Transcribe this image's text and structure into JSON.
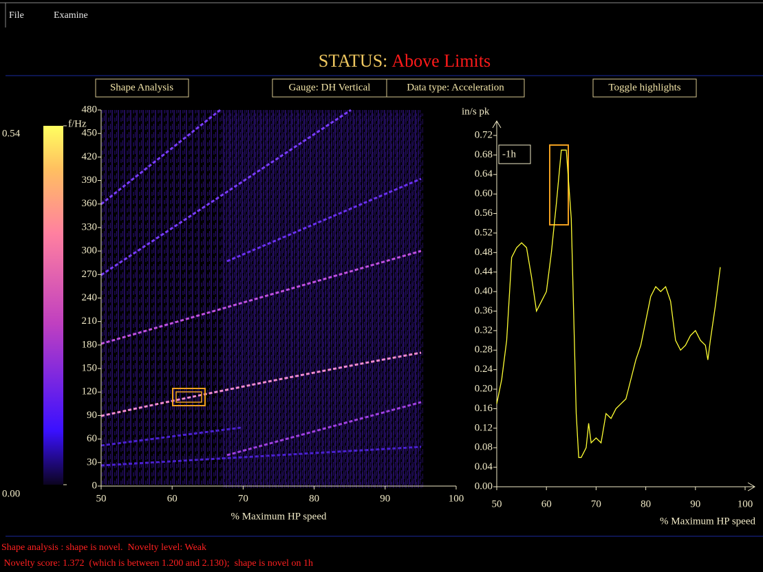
{
  "menu": [
    "File",
    "Examine"
  ],
  "status": {
    "label": "STATUS:",
    "value": "Above Limits"
  },
  "buttons": [
    "Shape Analysis",
    "Gauge: DH Vertical",
    "Data type: Acceleration",
    "Toggle highlights"
  ],
  "chart_data": [
    {
      "type": "heatmap",
      "y_label": "f/Hz",
      "x_label": "% Maximum HP speed",
      "xlim": [
        50,
        100
      ],
      "xticks": [
        50,
        60,
        70,
        80,
        90,
        100
      ],
      "ylim": [
        0,
        480
      ],
      "yticks": [
        0,
        30,
        60,
        90,
        120,
        150,
        180,
        210,
        240,
        270,
        300,
        330,
        360,
        390,
        420,
        450,
        480
      ],
      "colorbar": {
        "lim": [
          0,
          0.54
        ],
        "ticks": [
          {
            "value": 0,
            "label": "0.00"
          },
          {
            "value": 0.54,
            "label": "0.54"
          }
        ]
      }
    },
    {
      "type": "line",
      "y_label": "in/s pk",
      "x_label": "% Maximum HP speed",
      "annotation": "-1h",
      "color": "#ffff33",
      "xlim": [
        50,
        100
      ],
      "xticks": [
        50,
        60,
        70,
        80,
        90,
        100
      ],
      "ylim": [
        0,
        0.72
      ],
      "yticks": [
        {
          "value": 0,
          "label": "0.00"
        },
        {
          "value": 0.04,
          "label": "0.04"
        },
        {
          "value": 0.08,
          "label": "0.08"
        },
        {
          "value": 0.12,
          "label": "0.12"
        },
        {
          "value": 0.16,
          "label": "0.16"
        },
        {
          "value": 0.2,
          "label": "0.20"
        },
        {
          "value": 0.24,
          "label": "0.24"
        },
        {
          "value": 0.28,
          "label": "0.28"
        },
        {
          "value": 0.32,
          "label": "0.32"
        },
        {
          "value": 0.36,
          "label": "0.36"
        },
        {
          "value": 0.4,
          "label": "0.40"
        },
        {
          "value": 0.44,
          "label": "0.44"
        },
        {
          "value": 0.48,
          "label": "0.48"
        },
        {
          "value": 0.52,
          "label": "0.52"
        },
        {
          "value": 0.56,
          "label": "0.56"
        },
        {
          "value": 0.6,
          "label": "0.60"
        },
        {
          "value": 0.64,
          "label": "0.64"
        },
        {
          "value": 0.68,
          "label": "0.68"
        },
        {
          "value": 0.72,
          "label": "0.72"
        }
      ],
      "x": [
        50,
        51,
        52,
        53,
        54,
        55,
        56,
        57,
        58,
        59,
        60,
        61,
        62,
        63,
        64,
        65,
        66,
        66.5,
        67,
        68,
        68.5,
        69,
        70,
        71,
        72,
        73,
        74,
        75,
        76,
        77,
        78,
        79,
        80,
        81,
        82,
        83,
        84,
        85,
        86,
        87,
        88,
        89,
        90,
        91,
        92,
        92.5,
        93,
        94,
        95
      ],
      "values": [
        0.17,
        0.22,
        0.3,
        0.47,
        0.49,
        0.5,
        0.49,
        0.43,
        0.36,
        0.38,
        0.4,
        0.48,
        0.58,
        0.69,
        0.69,
        0.55,
        0.15,
        0.06,
        0.06,
        0.08,
        0.13,
        0.09,
        0.1,
        0.09,
        0.15,
        0.14,
        0.16,
        0.17,
        0.18,
        0.22,
        0.26,
        0.29,
        0.34,
        0.39,
        0.41,
        0.4,
        0.41,
        0.38,
        0.3,
        0.28,
        0.29,
        0.31,
        0.32,
        0.3,
        0.29,
        0.26,
        0.3,
        0.37,
        0.45
      ]
    }
  ],
  "messages": [
    "Shape analysis : shape is novel.  Novelty level: Weak",
    " Novelty score: 1.372  (which is between 1.200 and 2.130);  shape is novel on 1h"
  ]
}
